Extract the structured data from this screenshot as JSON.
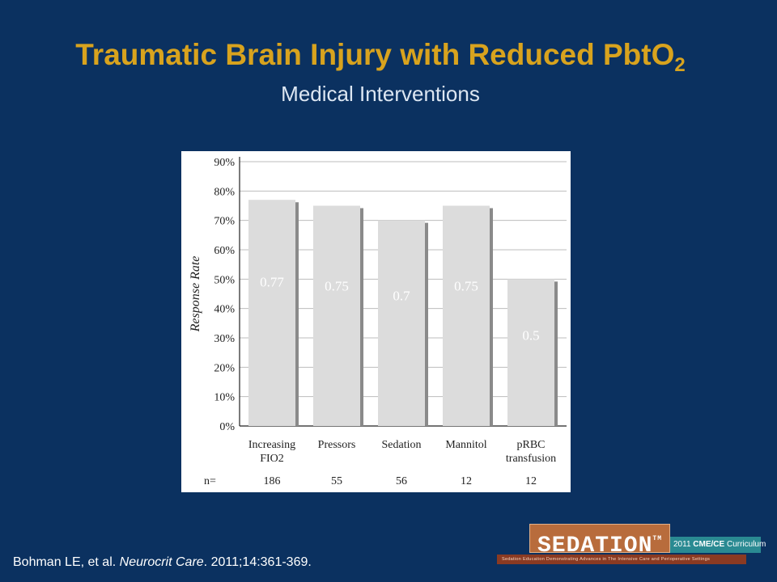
{
  "slide": {
    "title_main": "Traumatic Brain Injury with Reduced PbtO",
    "title_sub": "2",
    "subtitle": "Medical Interventions",
    "citation_author": "Bohman LE, et al. ",
    "citation_journal": "Neurocrit Care",
    "citation_rest": ". 2011;14:361-369."
  },
  "logo": {
    "brand": "SEDATION",
    "tm": "TM",
    "curriculum_year": "2011",
    "curriculum_bold": "CME/CE",
    "curriculum_label": "Curriculum",
    "tagline": "Sedation Education Demonstrating Advances in The Intensive Care and Perioperative Settings"
  },
  "colors": {
    "background": "#0b3160",
    "title": "#d8a31e",
    "subtitle": "#dce6f2",
    "bar_fill": "#dcdcdc",
    "bar_shadow": "#8a8a8a",
    "grid": "#bdbdbd"
  },
  "chart_data": {
    "type": "bar",
    "ylabel": "Response Rate",
    "ylim": [
      0,
      0.9
    ],
    "yticks": [
      "0%",
      "10%",
      "20%",
      "30%",
      "40%",
      "50%",
      "60%",
      "70%",
      "80%",
      "90%"
    ],
    "grid": true,
    "categories": [
      [
        "Increasing",
        "FIO2"
      ],
      [
        "Pressors"
      ],
      [
        "Sedation"
      ],
      [
        "Mannitol"
      ],
      [
        "pRBC",
        "transfusion"
      ]
    ],
    "values": [
      0.77,
      0.75,
      0.7,
      0.75,
      0.5
    ],
    "value_labels": [
      "0.77",
      "0.75",
      "0.7",
      "0.75",
      "0.5"
    ],
    "n_label": "n=",
    "n_values": [
      "186",
      "55",
      "56",
      "12",
      "12"
    ]
  }
}
